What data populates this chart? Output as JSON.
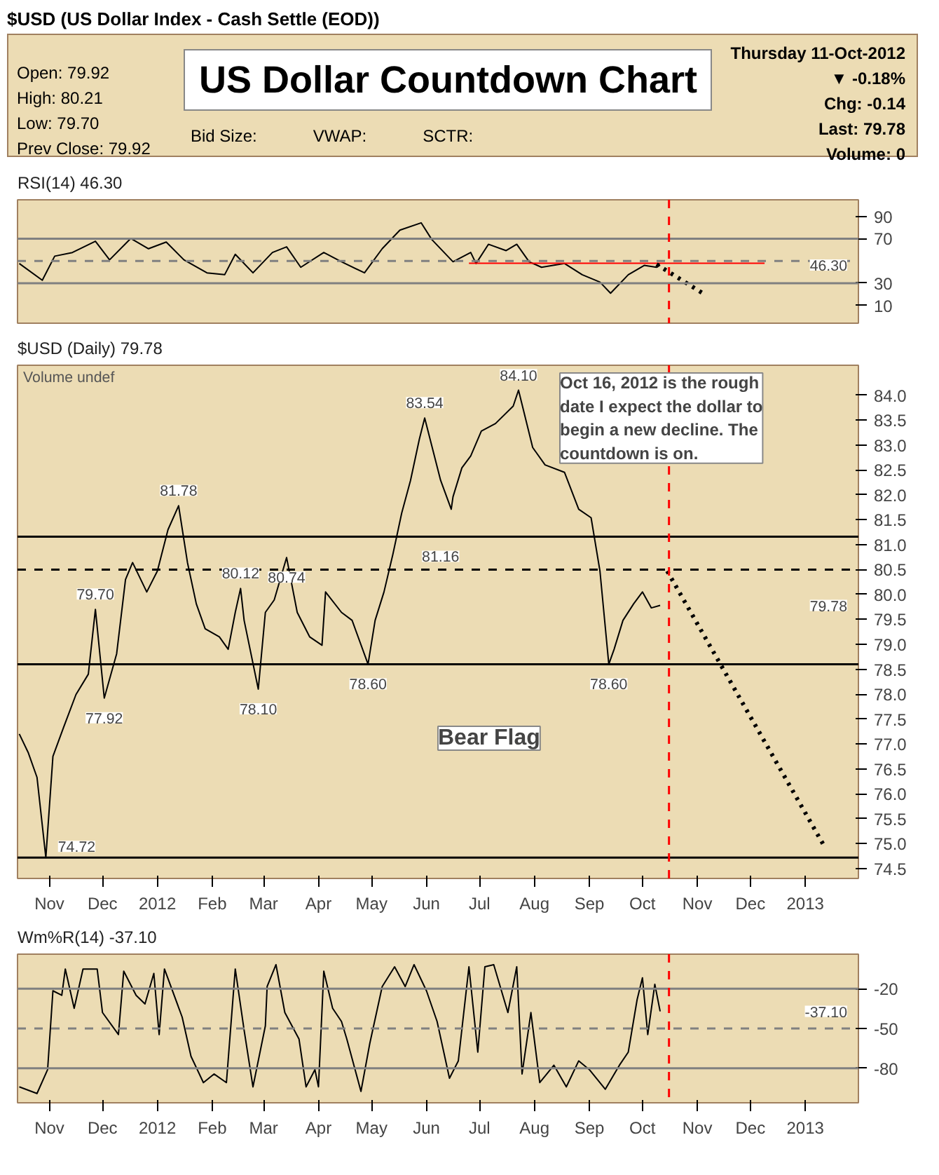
{
  "chart_data": [
    {
      "type": "line",
      "title": "US Dollar Countdown Chart",
      "subtitle": "$USD (US Dollar Index - Cash Settle (EOD))",
      "annotations": [
        "Open: 79.92",
        "High: 80.21",
        "Low: 79.70",
        "Prev Close: 79.92",
        "Bid Size:",
        "VWAP:",
        "SCTR:",
        "Thursday 11-Oct-2012",
        "▼ -0.18%",
        "Chg: -0.14",
        "Last: 79.78",
        "Volume: 0",
        "RSI(14) 46.30",
        "46.30"
      ],
      "x": [
        "2011-10-15",
        "2011-10-28",
        "2011-11-04",
        "2011-11-14",
        "2011-11-27",
        "2011-12-05",
        "2011-12-17",
        "2011-12-27",
        "2012-01-06",
        "2012-01-16",
        "2012-01-29",
        "2012-02-08",
        "2012-02-14",
        "2012-02-24",
        "2012-03-06",
        "2012-03-14",
        "2012-03-22",
        "2012-04-04",
        "2012-04-14",
        "2012-04-27",
        "2012-05-07",
        "2012-05-17",
        "2012-05-29",
        "2012-06-04",
        "2012-06-16",
        "2012-06-26",
        "2012-06-29",
        "2012-07-06",
        "2012-07-16",
        "2012-07-22",
        "2012-07-29",
        "2012-08-05",
        "2012-08-18",
        "2012-08-28",
        "2012-09-07",
        "2012-09-13",
        "2012-09-23",
        "2012-10-02",
        "2012-10-09",
        "2012-10-11"
      ],
      "series": [
        {
          "color": "#000000",
          "values": [
            47.7,
            32.6,
            54.3,
            57.6,
            67.7,
            51,
            70.3,
            61,
            67,
            51,
            39.3,
            37.6,
            56,
            39.3,
            57.6,
            62.7,
            44.3,
            57.6,
            49.3,
            39.3,
            61,
            77.7,
            84.3,
            69.3,
            49.3,
            57.6,
            47.7,
            65,
            59.3,
            65,
            49.3,
            44.3,
            47.7,
            37.6,
            31,
            21,
            37.6,
            46,
            44.3,
            46.3
          ]
        },
        {
          "color": "#ff0000",
          "x": [
            "2012-06-25",
            "2012-12-09"
          ],
          "values": [
            48,
            48
          ]
        },
        {
          "color": "#000000",
          "x": [
            "2012-10-09",
            "2012-11-06"
          ],
          "values": [
            47,
            19
          ],
          "line_style": "dotted"
        }
      ],
      "xlim": [
        "2011-10-14",
        "2013-01-31"
      ],
      "ylim": [
        -6,
        105
      ],
      "yticks": [
        10,
        30,
        70,
        90
      ],
      "tick_labels": "y",
      "ref_lines": [
        {
          "axis": "y",
          "value": 70,
          "color": "#808080"
        },
        {
          "axis": "y",
          "value": 30,
          "color": "#808080"
        },
        {
          "axis": "y",
          "value": 50,
          "color": "#808080",
          "line_style": "dashed"
        },
        {
          "axis": "x",
          "value": "2012-10-16",
          "color": "#ff0000",
          "line_style": "dashed"
        }
      ]
    },
    {
      "type": "line",
      "title": "$USD (Daily) 79.78",
      "annotations": [
        "Volume undef",
        "Oct 16, 2012 is the rough date I expect the dollar to begin a new decline.  The countdown is on.",
        "Bear Flag",
        {
          "text": "74.72",
          "x": "2011-10-30",
          "y": 74.72
        },
        {
          "text": "79.70",
          "x": "2011-11-27",
          "y": 79.7
        },
        {
          "text": "77.92",
          "x": "2011-12-02",
          "y": 77.92
        },
        {
          "text": "81.78",
          "x": "2012-01-13",
          "y": 81.78
        },
        {
          "text": "80.12",
          "x": "2012-02-17",
          "y": 80.12
        },
        {
          "text": "78.10",
          "x": "2012-02-27",
          "y": 78.1
        },
        {
          "text": "80.74",
          "x": "2012-03-14",
          "y": 80.74
        },
        {
          "text": "78.60",
          "x": "2012-04-29",
          "y": 78.6
        },
        {
          "text": "83.54",
          "x": "2012-05-31",
          "y": 83.54
        },
        {
          "text": "81.16",
          "x": "2012-06-09",
          "y": 81.16
        },
        {
          "text": "84.10",
          "x": "2012-07-23",
          "y": 84.1
        },
        {
          "text": "78.60",
          "x": "2012-09-12",
          "y": 78.6
        },
        "79.78"
      ],
      "x": [
        "2011-10-15",
        "2011-10-20",
        "2011-10-25",
        "2011-10-30",
        "2011-11-03",
        "2011-11-09",
        "2011-11-16",
        "2011-11-23",
        "2011-11-27",
        "2011-12-02",
        "2011-12-09",
        "2011-12-14",
        "2011-12-18",
        "2011-12-26",
        "2012-01-01",
        "2012-01-07",
        "2012-01-13",
        "2012-01-18",
        "2012-01-23",
        "2012-01-28",
        "2012-02-05",
        "2012-02-10",
        "2012-02-14",
        "2012-02-17",
        "2012-02-19",
        "2012-02-27",
        "2012-03-02",
        "2012-03-07",
        "2012-03-14",
        "2012-03-20",
        "2012-03-27",
        "2012-04-03",
        "2012-04-05",
        "2012-04-14",
        "2012-04-20",
        "2012-04-29",
        "2012-05-03",
        "2012-05-08",
        "2012-05-13",
        "2012-05-18",
        "2012-05-23",
        "2012-05-28",
        "2012-05-31",
        "2012-06-09",
        "2012-06-15",
        "2012-06-16",
        "2012-06-21",
        "2012-06-26",
        "2012-07-02",
        "2012-07-10",
        "2012-07-20",
        "2012-07-23",
        "2012-07-31",
        "2012-08-07",
        "2012-08-18",
        "2012-08-26",
        "2012-09-02",
        "2012-09-07",
        "2012-09-12",
        "2012-09-15",
        "2012-09-20",
        "2012-09-26",
        "2012-10-01",
        "2012-10-06",
        "2012-10-11"
      ],
      "series": [
        {
          "color": "#000000",
          "values": [
            77.2,
            76.83,
            76.33,
            74.72,
            76.75,
            77.33,
            77.99,
            78.4,
            79.7,
            77.92,
            78.81,
            80.3,
            80.64,
            80.05,
            80.47,
            81.3,
            81.78,
            80.64,
            79.81,
            79.31,
            79.15,
            78.9,
            79.64,
            80.12,
            79.48,
            78.1,
            79.64,
            79.89,
            80.74,
            79.64,
            79.15,
            78.98,
            80.05,
            79.64,
            79.48,
            78.6,
            79.48,
            80.05,
            80.8,
            81.63,
            82.29,
            83.12,
            83.54,
            82.29,
            81.71,
            81.96,
            82.54,
            82.78,
            83.28,
            83.43,
            83.78,
            84.1,
            82.95,
            82.6,
            82.45,
            81.71,
            81.54,
            80.47,
            78.6,
            78.9,
            79.48,
            79.81,
            80.05,
            79.73,
            79.78
          ]
        },
        {
          "color": "#000000",
          "x": [
            "2012-10-15",
            "2013-01-12"
          ],
          "values": [
            80.47,
            74.93
          ],
          "line_style": "dotted"
        }
      ],
      "xlim": [
        "2011-10-14",
        "2013-01-31"
      ],
      "ylim": [
        74.3,
        84.6
      ],
      "yticks": [
        74.5,
        {
          "value": 75,
          "label": "75.0"
        },
        75.5,
        {
          "value": 76,
          "label": "76.0"
        },
        76.5,
        {
          "value": 77,
          "label": "77.0"
        },
        77.5,
        {
          "value": 78,
          "label": "78.0"
        },
        78.5,
        {
          "value": 79,
          "label": "79.0"
        },
        79.5,
        {
          "value": 80,
          "label": "80.0"
        },
        80.5,
        {
          "value": 81,
          "label": "81.0"
        },
        81.5,
        {
          "value": 82,
          "label": "82.0"
        },
        82.5,
        {
          "value": 83,
          "label": "83.0"
        },
        83.5,
        {
          "value": 84,
          "label": "84.0"
        }
      ],
      "xticks": [
        {
          "value": "2011-11-01",
          "label": "Nov"
        },
        {
          "value": "2011-12-01",
          "label": "Dec"
        },
        {
          "value": "2012-01-01",
          "label": "2012"
        },
        {
          "value": "2012-02-01",
          "label": "Feb"
        },
        {
          "value": "2012-03-01",
          "label": "Mar"
        },
        {
          "value": "2012-04-01",
          "label": "Apr"
        },
        {
          "value": "2012-05-01",
          "label": "May"
        },
        {
          "value": "2012-06-01",
          "label": "Jun"
        },
        {
          "value": "2012-07-01",
          "label": "Jul"
        },
        {
          "value": "2012-08-01",
          "label": "Aug"
        },
        {
          "value": "2012-09-01",
          "label": "Sep"
        },
        {
          "value": "2012-10-01",
          "label": "Oct"
        },
        {
          "value": "2012-11-01",
          "label": "Nov"
        },
        {
          "value": "2012-12-01",
          "label": "Dec"
        },
        {
          "value": "2013-01-01",
          "label": "2013"
        }
      ],
      "ref_lines": [
        {
          "axis": "y",
          "value": 81.16,
          "color": "#000000"
        },
        {
          "axis": "y",
          "value": 80.5,
          "color": "#000000",
          "line_style": "dashed"
        },
        {
          "axis": "y",
          "value": 78.6,
          "color": "#000000"
        },
        {
          "axis": "y",
          "value": 74.72,
          "color": "#000000"
        },
        {
          "axis": "x",
          "value": "2012-10-16",
          "color": "#ff0000",
          "line_style": "dashed"
        }
      ]
    },
    {
      "type": "line",
      "title": "Wm%R(14) -37.10",
      "annotations": [
        "-37.10"
      ],
      "x": [
        "2011-10-15",
        "2011-10-25",
        "2011-10-31",
        "2011-11-03",
        "2011-11-08",
        "2011-11-10",
        "2011-11-15",
        "2011-11-20",
        "2011-11-28",
        "2011-12-01",
        "2011-12-10",
        "2011-12-13",
        "2011-12-20",
        "2011-12-25",
        "2011-12-30",
        "2012-01-02",
        "2012-01-05",
        "2012-01-15",
        "2012-01-20",
        "2012-01-27",
        "2012-02-02",
        "2012-02-09",
        "2012-02-14",
        "2012-02-19",
        "2012-02-24",
        "2012-03-02",
        "2012-03-03",
        "2012-03-08",
        "2012-03-13",
        "2012-03-21",
        "2012-03-25",
        "2012-03-30",
        "2012-04-01",
        "2012-04-04",
        "2012-04-09",
        "2012-04-14",
        "2012-04-17",
        "2012-04-25",
        "2012-04-30",
        "2012-05-07",
        "2012-05-14",
        "2012-05-20",
        "2012-05-25",
        "2012-06-01",
        "2012-06-07",
        "2012-06-14",
        "2012-06-19",
        "2012-06-25",
        "2012-06-30",
        "2012-07-04",
        "2012-07-09",
        "2012-07-17",
        "2012-07-22",
        "2012-07-25",
        "2012-07-30",
        "2012-08-04",
        "2012-08-12",
        "2012-08-19",
        "2012-08-26",
        "2012-09-01",
        "2012-09-10",
        "2012-09-18",
        "2012-09-23",
        "2012-09-28",
        "2012-10-01",
        "2012-10-04",
        "2012-10-08",
        "2012-10-11"
      ],
      "series": [
        {
          "color": "#000000",
          "values": [
            -94,
            -99,
            -81,
            -21.6,
            -25,
            -5.2,
            -34.8,
            -5.2,
            -5.2,
            -38,
            -54.6,
            -6.8,
            -25,
            -31.5,
            -8.5,
            -54.6,
            -5.2,
            -41.4,
            -71,
            -90.8,
            -84.3,
            -90.8,
            -5.2,
            -51.3,
            -94,
            -48,
            -18.4,
            -1.9,
            -38,
            -57.9,
            -94,
            -81,
            -94,
            -6.8,
            -34.8,
            -44.7,
            -57.9,
            -97.4,
            -61.2,
            -18.4,
            -3.5,
            -18.4,
            -1.9,
            -21.6,
            -44.7,
            -87.5,
            -74.4,
            -3.5,
            -67.8,
            -3.5,
            -1.9,
            -38,
            -3.5,
            -84.3,
            -38,
            -90.8,
            -77.7,
            -94,
            -74.4,
            -81,
            -95.8,
            -77.7,
            -67.8,
            -28.2,
            -11.8,
            -54.6,
            -16.7,
            -37.1
          ]
        }
      ],
      "xlim": [
        "2011-10-14",
        "2013-01-31"
      ],
      "ylim": [
        -106,
        6
      ],
      "yticks": [
        -80,
        -50,
        -20
      ],
      "xticks": [
        {
          "value": "2011-11-01",
          "label": "Nov"
        },
        {
          "value": "2011-12-01",
          "label": "Dec"
        },
        {
          "value": "2012-01-01",
          "label": "2012"
        },
        {
          "value": "2012-02-01",
          "label": "Feb"
        },
        {
          "value": "2012-03-01",
          "label": "Mar"
        },
        {
          "value": "2012-04-01",
          "label": "Apr"
        },
        {
          "value": "2012-05-01",
          "label": "May"
        },
        {
          "value": "2012-06-01",
          "label": "Jun"
        },
        {
          "value": "2012-07-01",
          "label": "Jul"
        },
        {
          "value": "2012-08-01",
          "label": "Aug"
        },
        {
          "value": "2012-09-01",
          "label": "Sep"
        },
        {
          "value": "2012-10-01",
          "label": "Oct"
        },
        {
          "value": "2012-11-01",
          "label": "Nov"
        },
        {
          "value": "2012-12-01",
          "label": "Dec"
        },
        {
          "value": "2013-01-01",
          "label": "2013"
        }
      ],
      "ref_lines": [
        {
          "axis": "y",
          "value": -20,
          "color": "#808080"
        },
        {
          "axis": "y",
          "value": -80,
          "color": "#808080"
        },
        {
          "axis": "y",
          "value": -50,
          "color": "#808080",
          "line_style": "dashed"
        },
        {
          "axis": "x",
          "value": "2012-10-16",
          "color": "#ff0000",
          "line_style": "dashed"
        }
      ]
    }
  ]
}
